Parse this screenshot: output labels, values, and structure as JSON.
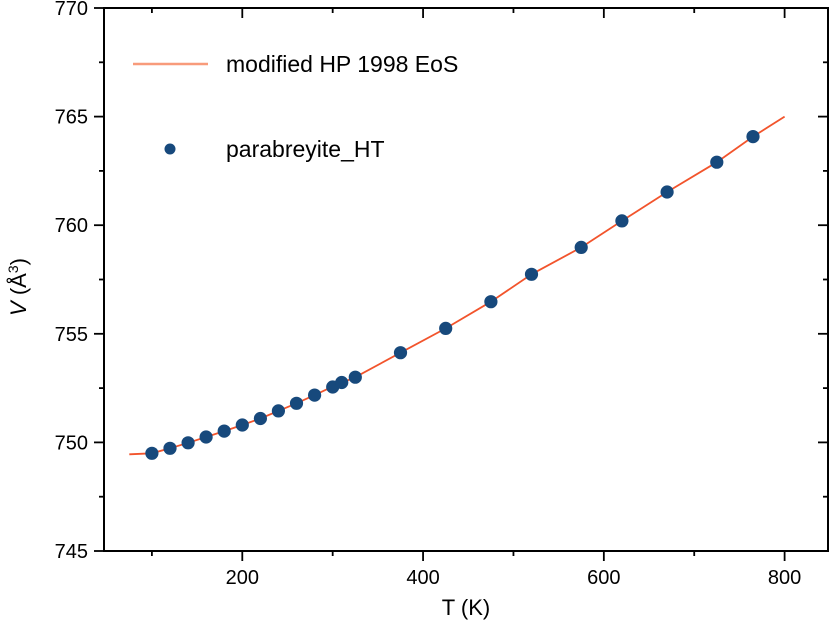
{
  "figure": {
    "background": "#ffffff",
    "frame_color": "#000000"
  },
  "chart_data": {
    "type": "scatter",
    "title": "",
    "xlabel": "T (K)",
    "ylabel": "V (Å³)",
    "ylabel_parts": [
      "V",
      " (Å",
      "3",
      ")"
    ],
    "xlim": [
      47,
      848
    ],
    "ylim": [
      745,
      770
    ],
    "x_major_ticks": [
      200,
      400,
      600,
      800
    ],
    "x_minor_ticks": [
      100,
      300,
      500,
      700
    ],
    "y_major_ticks": [
      745,
      750,
      755,
      760,
      765,
      770
    ],
    "y_minor_ticks": [
      747.5,
      752.5,
      757.5,
      762.5,
      767.5
    ],
    "grid": false,
    "legend_position": "top-left-inside",
    "series": [
      {
        "name": "modified HP 1998 EoS",
        "type": "line",
        "color": "#f2542c",
        "legend_swatch_color": "#f89b7b",
        "line_width": 1.8,
        "points": [
          [
            75,
            749.45
          ],
          [
            100,
            749.5
          ],
          [
            120,
            749.73
          ],
          [
            140,
            749.98
          ],
          [
            160,
            750.25
          ],
          [
            180,
            750.52
          ],
          [
            200,
            750.8
          ],
          [
            220,
            751.1
          ],
          [
            240,
            751.45
          ],
          [
            260,
            751.8
          ],
          [
            280,
            752.18
          ],
          [
            300,
            752.57
          ],
          [
            325,
            753.0
          ],
          [
            375,
            754.13
          ],
          [
            425,
            755.25
          ],
          [
            475,
            756.48
          ],
          [
            520,
            757.74
          ],
          [
            575,
            758.98
          ],
          [
            620,
            760.2
          ],
          [
            670,
            761.53
          ],
          [
            725,
            762.9
          ],
          [
            765,
            764.08
          ],
          [
            800,
            765.0
          ]
        ]
      },
      {
        "name": "parabreyite_HT",
        "type": "scatter",
        "color": "#17497c",
        "marker_radius": 6.6,
        "points": [
          [
            100,
            749.5
          ],
          [
            120,
            749.73
          ],
          [
            140,
            749.98
          ],
          [
            160,
            750.25
          ],
          [
            180,
            750.52
          ],
          [
            200,
            750.8
          ],
          [
            220,
            751.1
          ],
          [
            240,
            751.45
          ],
          [
            260,
            751.8
          ],
          [
            280,
            752.18
          ],
          [
            300,
            752.55
          ],
          [
            310,
            752.76
          ],
          [
            325,
            753.0
          ],
          [
            375,
            754.13
          ],
          [
            425,
            755.25
          ],
          [
            475,
            756.48
          ],
          [
            520,
            757.74
          ],
          [
            575,
            758.98
          ],
          [
            620,
            760.2
          ],
          [
            670,
            761.53
          ],
          [
            725,
            762.9
          ],
          [
            765,
            764.08
          ]
        ]
      }
    ]
  }
}
